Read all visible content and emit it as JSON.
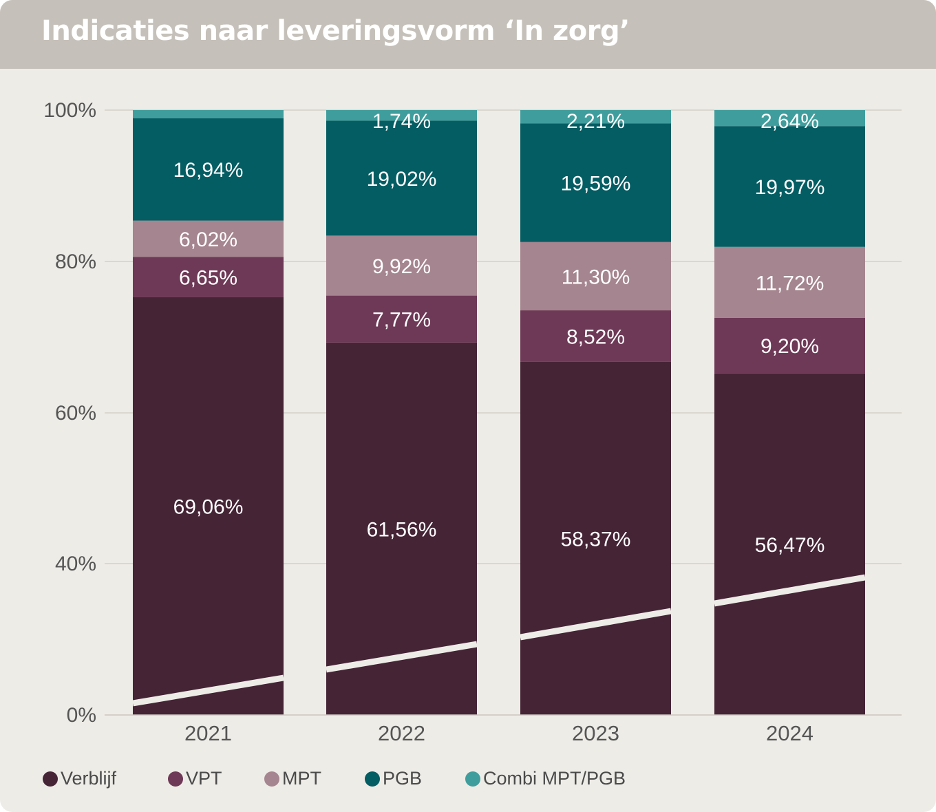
{
  "title": "Indicaties naar leveringsvorm ‘In zorg’",
  "colors": {
    "Verblijf": "#452436",
    "VPT": "#6e3956",
    "MPT": "#a5858f",
    "PGB": "#035d63",
    "Combi MPT/PGB": "#3f9e9d",
    "background": "#eeece7",
    "header": "#c5c0b9"
  },
  "legend": [
    "Verblijf",
    "VPT",
    "MPT",
    "PGB",
    "Combi MPT/PGB"
  ],
  "chart_data": {
    "type": "bar",
    "stacked": true,
    "categories": [
      "2021",
      "2022",
      "2023",
      "2024"
    ],
    "ylim": [
      0,
      100
    ],
    "yticks": [
      "0%",
      "40%",
      "60%",
      "80%",
      "100%"
    ],
    "grid": true,
    "axis_break": true,
    "legend_position": "bottom",
    "series": [
      {
        "name": "Verblijf",
        "values": [
          69.06,
          61.56,
          58.37,
          56.47
        ],
        "labels": [
          "69,06%",
          "61,56%",
          "58,37%",
          "56,47%"
        ]
      },
      {
        "name": "VPT",
        "values": [
          6.65,
          7.77,
          8.52,
          9.2
        ],
        "labels": [
          "6,65%",
          "7,77%",
          "8,52%",
          "9,20%"
        ]
      },
      {
        "name": "MPT",
        "values": [
          6.02,
          9.92,
          11.3,
          11.72
        ],
        "labels": [
          "6,02%",
          "9,92%",
          "11,30%",
          "11,72%"
        ]
      },
      {
        "name": "PGB",
        "values": [
          16.94,
          19.02,
          19.59,
          19.97
        ],
        "labels": [
          "16,94%",
          "19,02%",
          "19,59%",
          "19,97%"
        ]
      },
      {
        "name": "Combi MPT/PGB",
        "values": [
          1.33,
          1.74,
          2.21,
          2.64
        ],
        "labels": [
          "",
          "1,74%",
          "2,21%",
          "2,64%"
        ]
      }
    ]
  }
}
